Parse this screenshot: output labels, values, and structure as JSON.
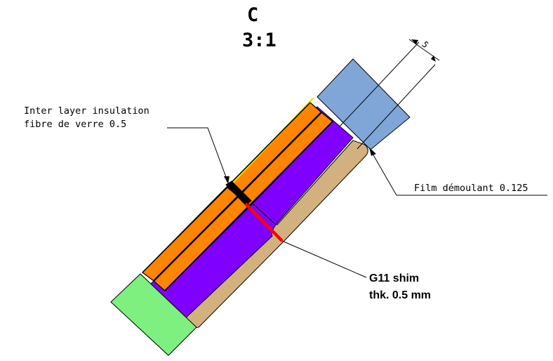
{
  "view": {
    "letter": "C",
    "scale": "3:1"
  },
  "dimension": {
    "value": "5"
  },
  "callouts": {
    "interlayer_line1": "Inter layer insulation",
    "interlayer_line2": "fibre de verre 0.5",
    "film": "Film démoulant 0.125",
    "shim_line1": "G11 shim",
    "shim_line2": "thk. 0.5 mm"
  },
  "colors": {
    "orange_conductor": "#ff8400",
    "purple_layer": "#8000ff",
    "tan_filler": "#d2b17f",
    "blue_block": "#7fa6d6",
    "green_block": "#7df07f",
    "shim_red": "#ff0000",
    "insulation_yellow": "#e6e600"
  }
}
